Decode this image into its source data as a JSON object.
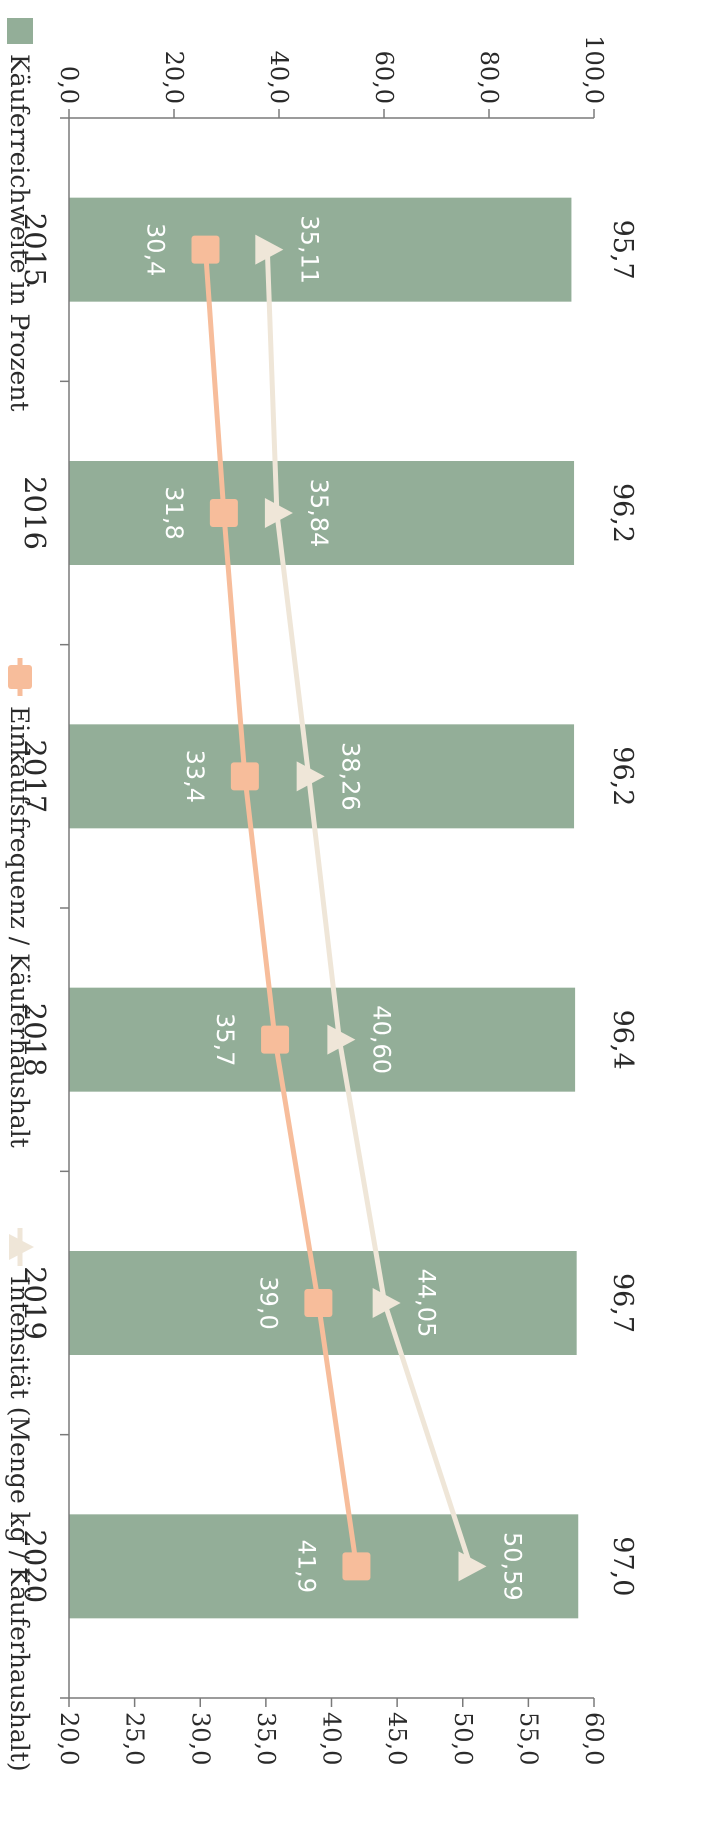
{
  "chart_data": {
    "type": "bar",
    "orientation": "rotated-90-clockwise",
    "categories": [
      "2015",
      "2016",
      "2017",
      "2018",
      "2019",
      "2020"
    ],
    "series": [
      {
        "name": "Käuferreichweite in Prozent",
        "kind": "bar",
        "axis": "left",
        "values": [
          95.7,
          96.2,
          96.2,
          96.4,
          96.7,
          97.0
        ],
        "value_labels": [
          "95,7",
          "96,2",
          "96,2",
          "96,4",
          "96,7",
          "97,0"
        ],
        "color": "#93ae98"
      },
      {
        "name": "Einkaufsfrequenz / Käuferhaushalt",
        "kind": "line",
        "marker": "square",
        "axis": "right",
        "values": [
          30.4,
          31.8,
          33.4,
          35.7,
          39.0,
          41.9
        ],
        "value_labels": [
          "30,4",
          "31,8",
          "33,4",
          "35,7",
          "39,0",
          "41,9"
        ],
        "color": "#f7bd9b"
      },
      {
        "name": "Intensität (Menge kg / Käuferhaushalt)",
        "kind": "line",
        "marker": "triangle",
        "axis": "right",
        "values": [
          35.11,
          35.84,
          38.26,
          40.6,
          44.05,
          50.59
        ],
        "value_labels": [
          "35,11",
          "35,84",
          "38,26",
          "40,60",
          "44,05",
          "50,59"
        ],
        "color": "#efe6d8"
      }
    ],
    "left_axis": {
      "ylim": [
        0,
        100
      ],
      "ticks": [
        0,
        20,
        40,
        60,
        80,
        100
      ],
      "tick_labels": [
        "0,0",
        "20,0",
        "40,0",
        "60,0",
        "80,0",
        "100,0"
      ]
    },
    "right_axis": {
      "ylim": [
        20,
        60
      ],
      "ticks": [
        20,
        25,
        30,
        35,
        40,
        45,
        50,
        55,
        60
      ],
      "tick_labels": [
        "20,0",
        "25,0",
        "30,0",
        "35,0",
        "40,0",
        "45,0",
        "50,0",
        "55,0",
        "60,0"
      ]
    },
    "legend_position": "left",
    "grid": false,
    "axis_color": "#7a7a7a",
    "bar_label_color": "#1a1a1a",
    "line_label_color": "#ffffff"
  }
}
